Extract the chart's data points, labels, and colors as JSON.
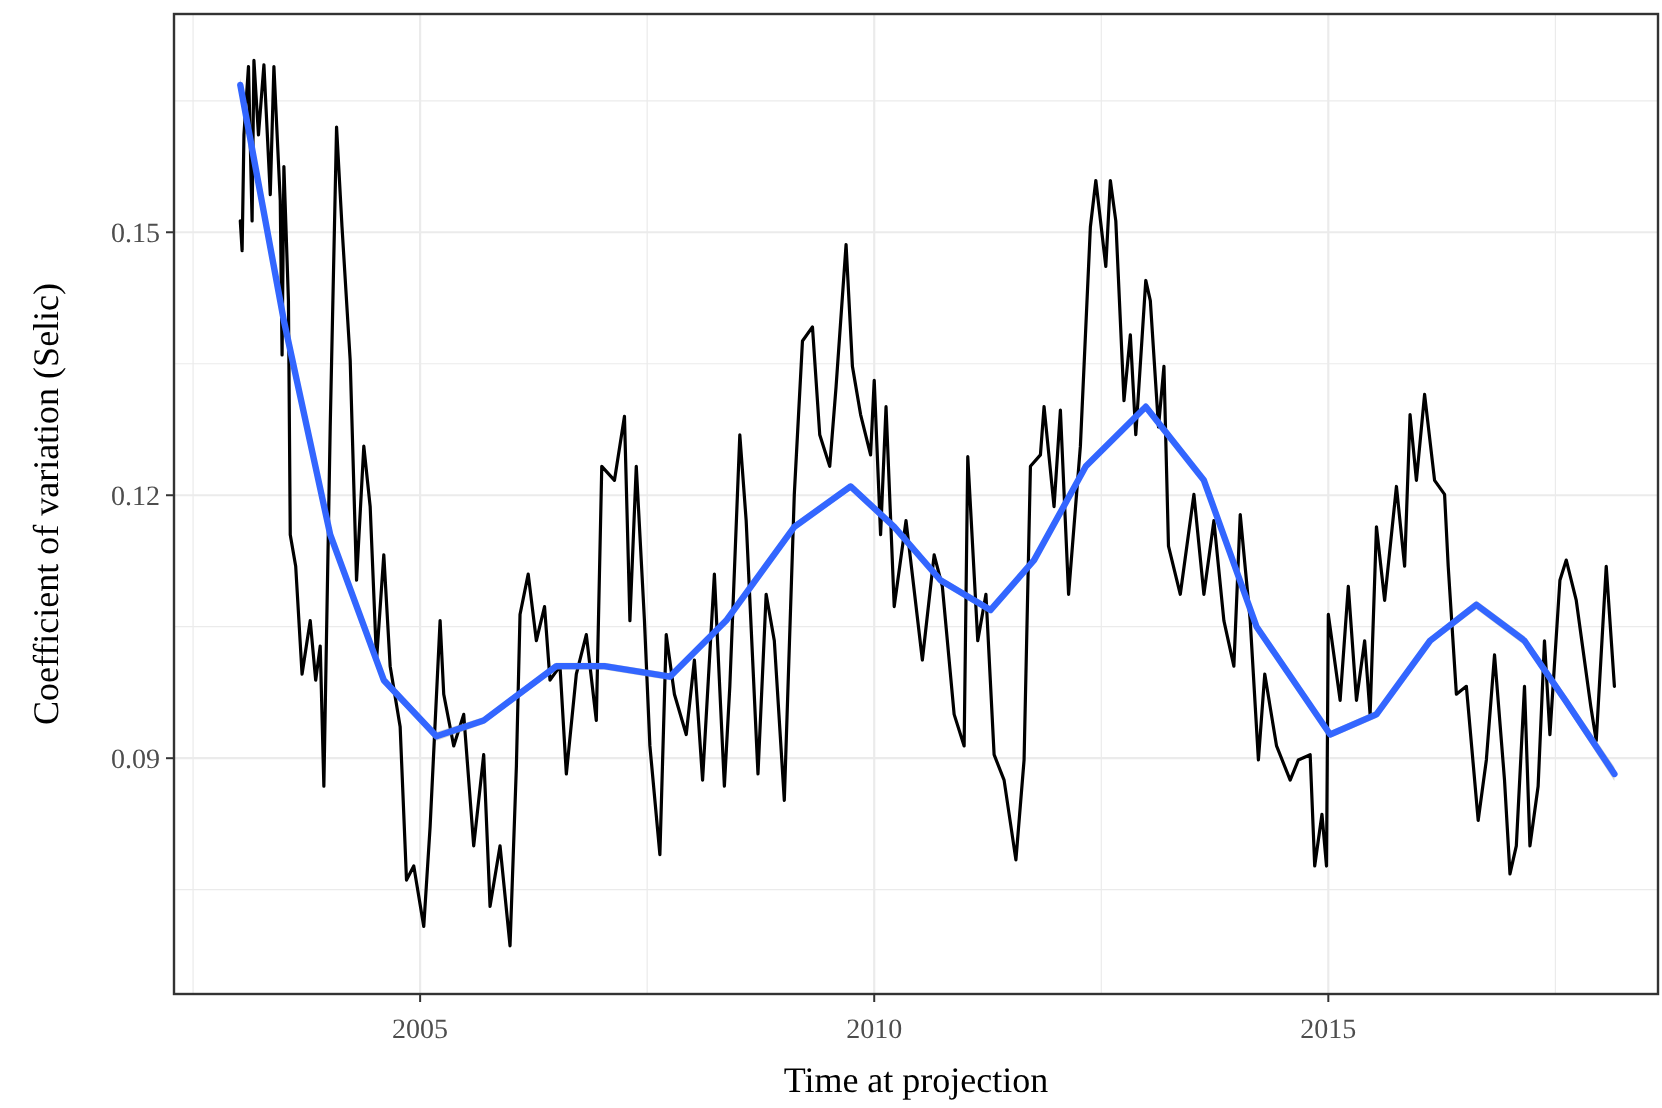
{
  "chart_data": {
    "type": "line",
    "xlabel": "Time at projection",
    "ylabel": "Coefficient of variation (Selic)",
    "xlim": [
      2002.29,
      2018.63
    ],
    "ylim": [
      0.0631,
      0.1749
    ],
    "xticks": [
      {
        "value": 2002.5,
        "label": null
      },
      2005,
      {
        "value": 2007.5,
        "label": null
      },
      2010,
      {
        "value": 2012.5,
        "label": null
      },
      2015,
      {
        "value": 2017.5,
        "label": null
      }
    ],
    "yticks": [
      {
        "value": 0.075,
        "label": null
      },
      0.09,
      {
        "value": 0.105,
        "label": null
      },
      0.12,
      {
        "value": 0.135,
        "label": null
      },
      0.15,
      {
        "value": 0.165,
        "label": null
      }
    ],
    "grid": true,
    "marker": "none",
    "line_style": "solid",
    "series": [
      {
        "color": "#000000",
        "x": [
          2003.02,
          2003.04,
          2003.06,
          2003.11,
          2003.15,
          2003.17,
          2003.22,
          2003.28,
          2003.35,
          2003.39,
          2003.46,
          2003.48,
          2003.5,
          2003.55,
          2003.57,
          2003.63,
          2003.7,
          2003.79,
          2003.85,
          2003.9,
          2003.94,
          2004.01,
          2004.08,
          2004.14,
          2004.23,
          2004.3,
          2004.38,
          2004.45,
          2004.52,
          2004.6,
          2004.67,
          2004.78,
          2004.85,
          2004.93,
          2005.04,
          2005.11,
          2005.22,
          2005.26,
          2005.37,
          2005.48,
          2005.59,
          2005.7,
          2005.77,
          2005.88,
          2005.99,
          2006.06,
          2006.1,
          2006.19,
          2006.28,
          2006.37,
          2006.43,
          2006.54,
          2006.61,
          2006.72,
          2006.83,
          2006.94,
          2007.0,
          2007.14,
          2007.25,
          2007.31,
          2007.38,
          2007.47,
          2007.53,
          2007.64,
          2007.71,
          2007.8,
          2007.93,
          2008.02,
          2008.11,
          2008.24,
          2008.35,
          2008.41,
          2008.52,
          2008.59,
          2008.72,
          2008.81,
          2008.9,
          2009.01,
          2009.12,
          2009.21,
          2009.32,
          2009.4,
          2009.51,
          2009.58,
          2009.69,
          2009.76,
          2009.85,
          2009.96,
          2010.0,
          2010.07,
          2010.13,
          2010.22,
          2010.35,
          2010.53,
          2010.66,
          2010.75,
          2010.88,
          2010.99,
          2011.03,
          2011.14,
          2011.23,
          2011.32,
          2011.43,
          2011.56,
          2011.65,
          2011.72,
          2011.83,
          2011.87,
          2011.98,
          2012.05,
          2012.14,
          2012.27,
          2012.38,
          2012.44,
          2012.55,
          2012.6,
          2012.66,
          2012.75,
          2012.82,
          2012.88,
          2012.99,
          2013.04,
          2013.13,
          2013.19,
          2013.24,
          2013.37,
          2013.52,
          2013.63,
          2013.74,
          2013.85,
          2013.96,
          2014.03,
          2014.14,
          2014.23,
          2014.3,
          2014.43,
          2014.58,
          2014.67,
          2014.8,
          2014.85,
          2014.93,
          2014.98,
          2015.0,
          2015.13,
          2015.22,
          2015.31,
          2015.4,
          2015.46,
          2015.53,
          2015.62,
          2015.75,
          2015.84,
          2015.9,
          2015.97,
          2016.06,
          2016.17,
          2016.28,
          2016.32,
          2016.41,
          2016.52,
          2016.65,
          2016.74,
          2016.83,
          2016.94,
          2017.0,
          2017.07,
          2017.16,
          2017.22,
          2017.31,
          2017.38,
          2017.44,
          2017.55,
          2017.62,
          2017.73,
          2017.89,
          2017.95,
          2018.06,
          2018.15
        ],
        "values": [
          0.1513,
          0.1479,
          0.1611,
          0.1689,
          0.1513,
          0.1696,
          0.1611,
          0.1691,
          0.1543,
          0.1689,
          0.1536,
          0.136,
          0.1575,
          0.1422,
          0.1155,
          0.1119,
          0.0996,
          0.1057,
          0.0989,
          0.1028,
          0.0868,
          0.1278,
          0.162,
          0.1506,
          0.1354,
          0.1103,
          0.1256,
          0.1187,
          0.1012,
          0.1132,
          0.1005,
          0.0936,
          0.0761,
          0.0777,
          0.0708,
          0.0822,
          0.1057,
          0.0973,
          0.0914,
          0.095,
          0.08,
          0.0904,
          0.0731,
          0.08,
          0.0686,
          0.0891,
          0.1064,
          0.111,
          0.1034,
          0.1073,
          0.0989,
          0.1005,
          0.0882,
          0.0996,
          0.1041,
          0.0943,
          0.1233,
          0.1217,
          0.129,
          0.1057,
          0.1233,
          0.1057,
          0.0914,
          0.079,
          0.1041,
          0.0973,
          0.0927,
          0.1012,
          0.0875,
          0.111,
          0.0868,
          0.0982,
          0.1269,
          0.1171,
          0.0882,
          0.1087,
          0.1034,
          0.0852,
          0.1201,
          0.1376,
          0.1392,
          0.1269,
          0.1233,
          0.1324,
          0.1486,
          0.1347,
          0.1292,
          0.1246,
          0.1331,
          0.1155,
          0.1301,
          0.1073,
          0.1171,
          0.1012,
          0.1132,
          0.1096,
          0.095,
          0.0914,
          0.1244,
          0.1034,
          0.1087,
          0.0904,
          0.0875,
          0.0784,
          0.0898,
          0.1233,
          0.1246,
          0.1301,
          0.1187,
          0.1297,
          0.1087,
          0.1256,
          0.1506,
          0.1559,
          0.1461,
          0.1559,
          0.1513,
          0.1308,
          0.1383,
          0.1269,
          0.1445,
          0.1422,
          0.1278,
          0.1347,
          0.1142,
          0.1087,
          0.1201,
          0.1087,
          0.1171,
          0.1057,
          0.1005,
          0.1178,
          0.1057,
          0.0898,
          0.0996,
          0.0914,
          0.0875,
          0.0898,
          0.0904,
          0.0777,
          0.0836,
          0.0777,
          0.1064,
          0.0966,
          0.1096,
          0.0966,
          0.1034,
          0.095,
          0.1164,
          0.108,
          0.121,
          0.1119,
          0.1292,
          0.1217,
          0.1315,
          0.1217,
          0.1201,
          0.1119,
          0.0973,
          0.0982,
          0.0829,
          0.0898,
          0.1018,
          0.0875,
          0.0768,
          0.08,
          0.0982,
          0.08,
          0.0868,
          0.1034,
          0.0927,
          0.1103,
          0.1126,
          0.108,
          0.0959,
          0.092,
          0.1119,
          0.0982
        ]
      },
      {
        "color": "#3366ff",
        "x": [
          2003.02,
          2003.5,
          2004.01,
          2004.6,
          2005.18,
          2005.7,
          2006.5,
          2007.03,
          2007.75,
          2008.37,
          2009.12,
          2009.74,
          2010.22,
          2010.73,
          2011.28,
          2011.76,
          2012.33,
          2012.99,
          2013.63,
          2014.21,
          2015.02,
          2015.53,
          2016.12,
          2016.63,
          2017.16,
          2017.61,
          2018.15
        ],
        "values": [
          0.1668,
          0.1399,
          0.1155,
          0.0989,
          0.0925,
          0.0943,
          0.1005,
          0.1005,
          0.0993,
          0.1057,
          0.1164,
          0.121,
          0.1164,
          0.1103,
          0.1069,
          0.1126,
          0.1233,
          0.1301,
          0.1217,
          0.105,
          0.0927,
          0.095,
          0.1034,
          0.1075,
          0.1034,
          0.0966,
          0.0882
        ],
        "lower": [
          0.166,
          0.1393,
          0.115,
          0.0984,
          0.092,
          0.0939,
          0.1001,
          0.1001,
          0.0989,
          0.1053,
          0.116,
          0.1206,
          0.116,
          0.1099,
          0.1065,
          0.1122,
          0.1229,
          0.1297,
          0.1213,
          0.1046,
          0.0923,
          0.0946,
          0.103,
          0.107,
          0.1029,
          0.096,
          0.0874
        ],
        "upper": [
          0.1676,
          0.1405,
          0.116,
          0.0994,
          0.093,
          0.0947,
          0.1009,
          0.1009,
          0.0997,
          0.1061,
          0.1168,
          0.1214,
          0.1168,
          0.1107,
          0.1073,
          0.113,
          0.1237,
          0.1305,
          0.1221,
          0.1054,
          0.0931,
          0.0954,
          0.1038,
          0.108,
          0.1039,
          0.0972,
          0.089
        ]
      }
    ]
  }
}
